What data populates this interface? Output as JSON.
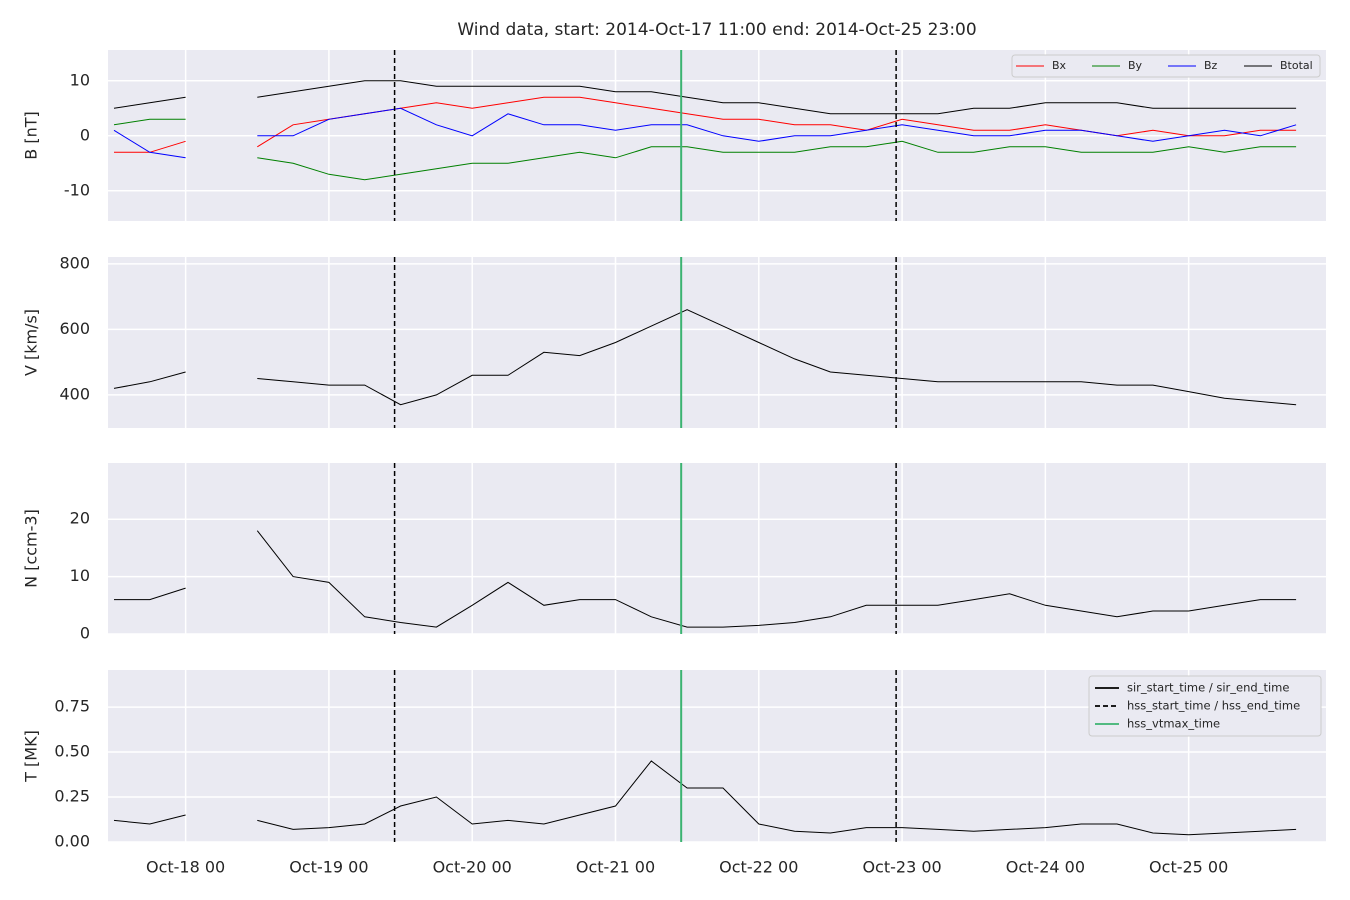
{
  "title": "Wind data, start: 2014-Oct-17 11:00  end: 2014-Oct-25 23:00",
  "markers": [
    {
      "name": "sir_start_time / sir_end_time",
      "color": "#000000",
      "style": "solid",
      "times": []
    },
    {
      "name": "hss_start_time / hss_end_time",
      "color": "#000000",
      "style": "dashed",
      "times": [
        "2014-10-19T11:00",
        "2014-10-22T23:00"
      ]
    },
    {
      "name": "hss_vtmax_time",
      "color": "#3cb371",
      "style": "solid",
      "times": [
        "2014-10-21T11:00"
      ]
    }
  ],
  "chart_data": [
    {
      "type": "line",
      "ylabel": "B [nT]",
      "sharex": true,
      "grid": true,
      "legend": "upper right",
      "x": [
        "2014-10-17T12:00",
        "2014-10-17T18:00",
        "2014-10-18T00:00",
        "2014-10-18T06:00",
        "2014-10-18T12:00",
        "2014-10-18T18:00",
        "2014-10-19T00:00",
        "2014-10-19T06:00",
        "2014-10-19T12:00",
        "2014-10-19T18:00",
        "2014-10-20T00:00",
        "2014-10-20T06:00",
        "2014-10-20T12:00",
        "2014-10-20T18:00",
        "2014-10-21T00:00",
        "2014-10-21T06:00",
        "2014-10-21T12:00",
        "2014-10-21T18:00",
        "2014-10-22T00:00",
        "2014-10-22T06:00",
        "2014-10-22T12:00",
        "2014-10-22T18:00",
        "2014-10-23T00:00",
        "2014-10-23T06:00",
        "2014-10-23T12:00",
        "2014-10-23T18:00",
        "2014-10-24T00:00",
        "2014-10-24T06:00",
        "2014-10-24T12:00",
        "2014-10-24T18:00",
        "2014-10-25T00:00",
        "2014-10-25T06:00",
        "2014-10-25T12:00",
        "2014-10-25T18:00"
      ],
      "ylim": [
        -15.5,
        15.6
      ],
      "yticks": [
        -10,
        0,
        10
      ],
      "series": [
        {
          "name": "Bx",
          "color": "#ff0000",
          "values": [
            -3,
            -3,
            -1,
            null,
            -2,
            2,
            3,
            4,
            5,
            6,
            5,
            6,
            7,
            7,
            6,
            5,
            4,
            3,
            3,
            2,
            2,
            1,
            3,
            2,
            1,
            1,
            2,
            1,
            0,
            1,
            0,
            0,
            1,
            1
          ]
        },
        {
          "name": "By",
          "color": "#008000",
          "values": [
            2,
            3,
            3,
            null,
            -4,
            -5,
            -7,
            -8,
            -7,
            -6,
            -5,
            -5,
            -4,
            -3,
            -4,
            -2,
            -2,
            -3,
            -3,
            -3,
            -2,
            -2,
            -1,
            -3,
            -3,
            -2,
            -2,
            -3,
            -3,
            -3,
            -2,
            -3,
            -2,
            -2
          ]
        },
        {
          "name": "Bz",
          "color": "#0000ff",
          "values": [
            1,
            -3,
            -4,
            null,
            0,
            0,
            3,
            4,
            5,
            2,
            0,
            4,
            2,
            2,
            1,
            2,
            2,
            0,
            -1,
            0,
            0,
            1,
            2,
            1,
            0,
            0,
            1,
            1,
            0,
            -1,
            0,
            1,
            0,
            2
          ]
        },
        {
          "name": "Btotal",
          "color": "#000000",
          "values": [
            5,
            6,
            7,
            null,
            7,
            8,
            9,
            10,
            10,
            9,
            9,
            9,
            9,
            9,
            8,
            8,
            7,
            6,
            6,
            5,
            4,
            4,
            4,
            4,
            5,
            5,
            6,
            6,
            6,
            5,
            5,
            5,
            5,
            5
          ]
        }
      ]
    },
    {
      "type": "line",
      "ylabel": "V [km/s]",
      "sharex": true,
      "grid": true,
      "x": [
        "2014-10-17T12:00",
        "2014-10-17T18:00",
        "2014-10-18T00:00",
        "2014-10-18T06:00",
        "2014-10-18T12:00",
        "2014-10-18T18:00",
        "2014-10-19T00:00",
        "2014-10-19T06:00",
        "2014-10-19T12:00",
        "2014-10-19T18:00",
        "2014-10-20T00:00",
        "2014-10-20T06:00",
        "2014-10-20T12:00",
        "2014-10-20T18:00",
        "2014-10-21T00:00",
        "2014-10-21T06:00",
        "2014-10-21T12:00",
        "2014-10-21T18:00",
        "2014-10-22T00:00",
        "2014-10-22T06:00",
        "2014-10-22T12:00",
        "2014-10-22T18:00",
        "2014-10-23T00:00",
        "2014-10-23T06:00",
        "2014-10-23T12:00",
        "2014-10-23T18:00",
        "2014-10-24T00:00",
        "2014-10-24T06:00",
        "2014-10-24T12:00",
        "2014-10-24T18:00",
        "2014-10-25T00:00",
        "2014-10-25T06:00",
        "2014-10-25T12:00",
        "2014-10-25T18:00"
      ],
      "ylim": [
        299,
        821
      ],
      "yticks": [
        400,
        600,
        800
      ],
      "series": [
        {
          "color": "#000000",
          "values": [
            420,
            440,
            470,
            null,
            450,
            440,
            430,
            430,
            370,
            400,
            460,
            460,
            530,
            520,
            560,
            610,
            660,
            610,
            560,
            510,
            470,
            460,
            450,
            440,
            440,
            440,
            440,
            440,
            430,
            430,
            410,
            390,
            380,
            370
          ]
        }
      ]
    },
    {
      "type": "line",
      "ylabel": "N [ccm-3]",
      "sharex": true,
      "grid": true,
      "x": [
        "2014-10-17T12:00",
        "2014-10-17T18:00",
        "2014-10-18T00:00",
        "2014-10-18T06:00",
        "2014-10-18T12:00",
        "2014-10-18T18:00",
        "2014-10-19T00:00",
        "2014-10-19T06:00",
        "2014-10-19T12:00",
        "2014-10-19T18:00",
        "2014-10-20T00:00",
        "2014-10-20T06:00",
        "2014-10-20T12:00",
        "2014-10-20T18:00",
        "2014-10-21T00:00",
        "2014-10-21T06:00",
        "2014-10-21T12:00",
        "2014-10-21T18:00",
        "2014-10-22T00:00",
        "2014-10-22T06:00",
        "2014-10-22T12:00",
        "2014-10-22T18:00",
        "2014-10-23T00:00",
        "2014-10-23T06:00",
        "2014-10-23T12:00",
        "2014-10-23T18:00",
        "2014-10-24T00:00",
        "2014-10-24T06:00",
        "2014-10-24T12:00",
        "2014-10-24T18:00",
        "2014-10-25T00:00",
        "2014-10-25T06:00",
        "2014-10-25T12:00",
        "2014-10-25T18:00"
      ],
      "ylim": [
        0,
        29.8
      ],
      "yticks": [
        0,
        10,
        20
      ],
      "series": [
        {
          "color": "#000000",
          "values": [
            6,
            6,
            8,
            null,
            18,
            10,
            9,
            3,
            2,
            1.2,
            5,
            9,
            5,
            6,
            6,
            3,
            1.2,
            1.2,
            1.5,
            2,
            3,
            5,
            5,
            5,
            6,
            7,
            5,
            4,
            3,
            4,
            4,
            5,
            6,
            6
          ]
        }
      ]
    },
    {
      "type": "line",
      "ylabel": "T [MK]",
      "grid": true,
      "legend": "upper right",
      "x": [
        "2014-10-17T12:00",
        "2014-10-17T18:00",
        "2014-10-18T00:00",
        "2014-10-18T06:00",
        "2014-10-18T12:00",
        "2014-10-18T18:00",
        "2014-10-19T00:00",
        "2014-10-19T06:00",
        "2014-10-19T12:00",
        "2014-10-19T18:00",
        "2014-10-20T00:00",
        "2014-10-20T06:00",
        "2014-10-20T12:00",
        "2014-10-20T18:00",
        "2014-10-21T00:00",
        "2014-10-21T06:00",
        "2014-10-21T12:00",
        "2014-10-21T18:00",
        "2014-10-22T00:00",
        "2014-10-22T06:00",
        "2014-10-22T12:00",
        "2014-10-22T18:00",
        "2014-10-23T00:00",
        "2014-10-23T06:00",
        "2014-10-23T12:00",
        "2014-10-23T18:00",
        "2014-10-24T00:00",
        "2014-10-24T06:00",
        "2014-10-24T12:00",
        "2014-10-24T18:00",
        "2014-10-25T00:00",
        "2014-10-25T06:00",
        "2014-10-25T12:00",
        "2014-10-25T18:00"
      ],
      "xlim": [
        "2014-10-17T11:00",
        "2014-10-25T23:00"
      ],
      "xticks": [
        {
          "value": "2014-10-18T00:00",
          "label": "Oct-18 00"
        },
        {
          "value": "2014-10-19T00:00",
          "label": "Oct-19 00"
        },
        {
          "value": "2014-10-20T00:00",
          "label": "Oct-20 00"
        },
        {
          "value": "2014-10-21T00:00",
          "label": "Oct-21 00"
        },
        {
          "value": "2014-10-22T00:00",
          "label": "Oct-22 00"
        },
        {
          "value": "2014-10-23T00:00",
          "label": "Oct-23 00"
        },
        {
          "value": "2014-10-24T00:00",
          "label": "Oct-24 00"
        },
        {
          "value": "2014-10-25T00:00",
          "label": "Oct-25 00"
        }
      ],
      "ylim": [
        0,
        0.956
      ],
      "yticks": [
        {
          "value": 0,
          "label": "0.00"
        },
        0.25,
        {
          "value": 0.5,
          "label": "0.50"
        },
        0.75
      ],
      "series": [
        {
          "color": "#000000",
          "values": [
            0.12,
            0.1,
            0.15,
            null,
            0.12,
            0.07,
            0.08,
            0.1,
            0.2,
            0.25,
            0.1,
            0.12,
            0.1,
            0.15,
            0.2,
            0.45,
            0.3,
            0.3,
            0.1,
            0.06,
            0.05,
            0.08,
            0.08,
            0.07,
            0.06,
            0.07,
            0.08,
            0.1,
            0.1,
            0.05,
            0.04,
            0.05,
            0.06,
            0.07
          ]
        }
      ]
    }
  ]
}
